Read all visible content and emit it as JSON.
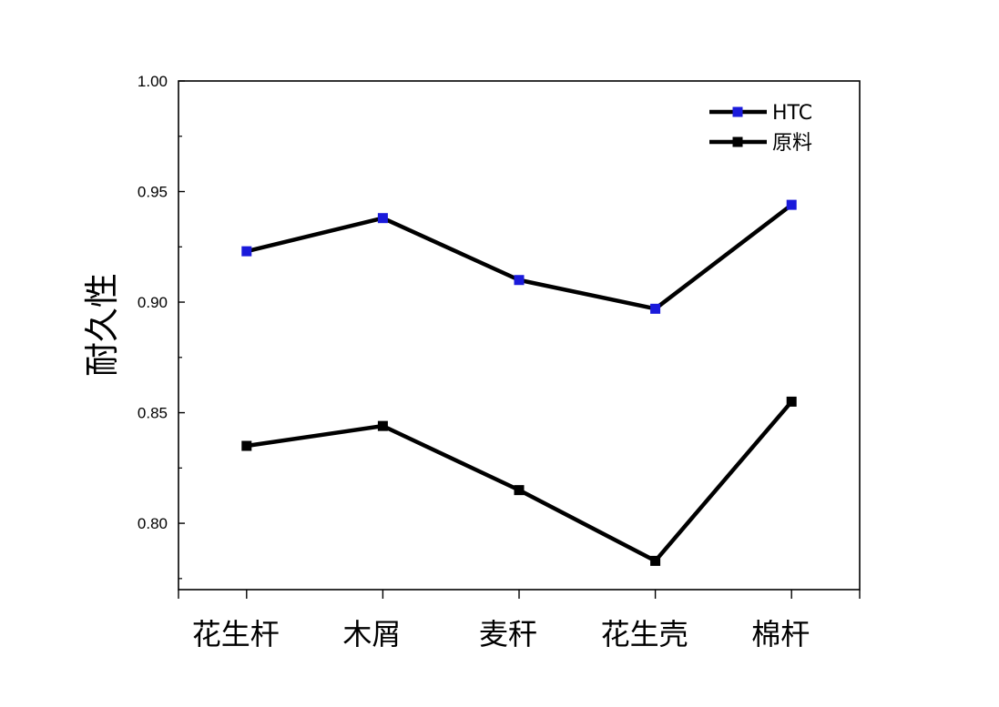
{
  "chart_data": {
    "type": "line",
    "title": "",
    "xlabel": "",
    "ylabel": "耐久性",
    "categories": [
      "花生杆",
      "木屑",
      "麦秆",
      "花生壳",
      "棉杆"
    ],
    "ylim": [
      0.77,
      1.0
    ],
    "yticks": [
      "1.00",
      "0.95",
      "0.90",
      "0.85",
      "0.80"
    ],
    "yticks_values": [
      1.0,
      0.95,
      0.9,
      0.85,
      0.8
    ],
    "grid": false,
    "legend_position": "top-right",
    "series": [
      {
        "name": "HTC",
        "values": [
          0.923,
          0.938,
          0.91,
          0.897,
          0.944
        ],
        "line_color": "#000000",
        "marker_color": "#1a1adb"
      },
      {
        "name": "原料",
        "values": [
          0.835,
          0.844,
          0.815,
          0.783,
          0.855
        ],
        "line_color": "#000000",
        "marker_color": "#000000"
      }
    ]
  }
}
